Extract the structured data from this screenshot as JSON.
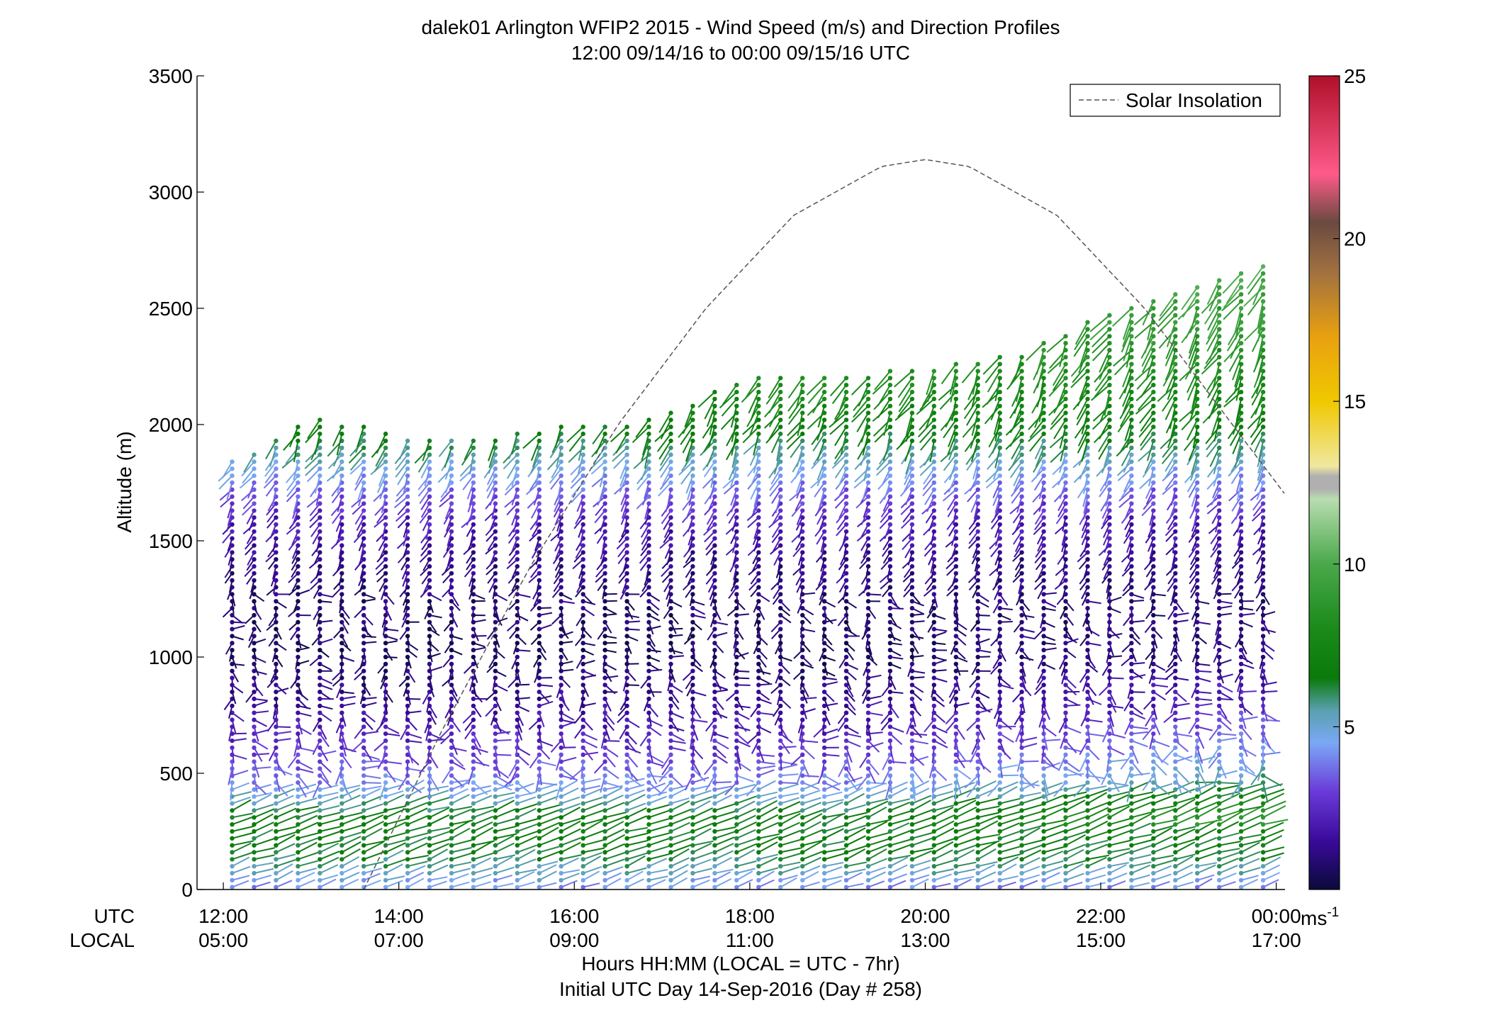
{
  "chart_data": {
    "type": "scatter",
    "title": "dalek01 Arlington WFIP2 2015 - Wind Speed (m/s) and Direction Profiles",
    "subtitle": "12:00 09/14/16 to 00:00 09/15/16  UTC",
    "ylabel": "Altitude (m)",
    "xlabel": "Hours HH:MM  (LOCAL = UTC - 7hr)",
    "xlabel2": "Initial UTC Day 14-Sep-2016 (Day # 258)",
    "row_label_utc": "UTC",
    "row_label_local": "LOCAL",
    "xlim_hours": [
      11.7,
      24.1
    ],
    "ylim": [
      0,
      3500
    ],
    "yticks": [
      0,
      500,
      1000,
      1500,
      2000,
      2500,
      3000,
      3500
    ],
    "xticks_utc": [
      "12:00",
      "14:00",
      "16:00",
      "18:00",
      "20:00",
      "22:00",
      "00:00"
    ],
    "xticks_local": [
      "05:00",
      "07:00",
      "09:00",
      "11:00",
      "13:00",
      "15:00",
      "17:00"
    ],
    "xtick_hours": [
      12,
      14,
      16,
      18,
      20,
      22,
      24
    ],
    "legend": {
      "label": "Solar Insolation",
      "style": "dashed",
      "placement": "top-right"
    },
    "colorbar": {
      "unit": "ms",
      "unit_exp": "-1",
      "ticks": [
        "5",
        "10",
        "15",
        "20",
        "25"
      ],
      "tick_values": [
        5,
        10,
        15,
        20,
        25
      ],
      "range": [
        0,
        25
      ],
      "stops": [
        {
          "v": 0,
          "c": "#0a0a3a"
        },
        {
          "v": 1.5,
          "c": "#3a0a9a"
        },
        {
          "v": 3,
          "c": "#6a3ad8"
        },
        {
          "v": 4.5,
          "c": "#7aa8f5"
        },
        {
          "v": 5.5,
          "c": "#5aa0b0"
        },
        {
          "v": 6.5,
          "c": "#0a7a0a"
        },
        {
          "v": 8,
          "c": "#1a8a1a"
        },
        {
          "v": 10,
          "c": "#4aa84a"
        },
        {
          "v": 12,
          "c": "#b8ddb0"
        },
        {
          "v": 12.3,
          "c": "#b0b0b0"
        },
        {
          "v": 12.7,
          "c": "#b0b0b0"
        },
        {
          "v": 13,
          "c": "#f0e8a0"
        },
        {
          "v": 15,
          "c": "#f0c800"
        },
        {
          "v": 17,
          "c": "#e8a010"
        },
        {
          "v": 19,
          "c": "#a07040"
        },
        {
          "v": 20.5,
          "c": "#6a4a40"
        },
        {
          "v": 22,
          "c": "#ff5a8a"
        },
        {
          "v": 25,
          "c": "#b0102a"
        }
      ]
    },
    "solar_insolation_curve": {
      "hours": [
        13.6,
        14.5,
        15.5,
        16.5,
        17.5,
        18.5,
        19.5,
        20.0,
        20.5,
        21.5,
        22.5,
        23.5,
        24.5
      ],
      "values": [
        0,
        690,
        1390,
        2000,
        2500,
        2900,
        3110,
        3140,
        3110,
        2900,
        2500,
        2000,
        1500
      ]
    },
    "wind_profile_grid": {
      "hour_start": 12.1,
      "hour_end": 23.9,
      "hour_step": 0.25,
      "altitude_start": 10,
      "altitude_step": 30,
      "max_altitude_by_hour": {
        "hours": [
          12.1,
          13.0,
          14.0,
          15.0,
          16.0,
          16.5,
          17.0,
          18.0,
          19.0,
          20.0,
          21.0,
          22.0,
          23.0,
          23.9
        ],
        "values": [
          1840,
          2050,
          1950,
          1950,
          2000,
          2000,
          2050,
          2220,
          2200,
          2250,
          2300,
          2480,
          2600,
          2700
        ]
      },
      "speed_profile_m_s": {
        "altitudes": [
          0,
          150,
          300,
          450,
          600,
          800,
          1000,
          1200,
          1400,
          1600,
          1800,
          2000,
          2300,
          2700
        ],
        "values": [
          4.0,
          6.5,
          6.8,
          4.2,
          2.8,
          1.5,
          0.6,
          0.8,
          1.2,
          2.2,
          4.5,
          7.0,
          8.5,
          10.0
        ]
      }
    }
  }
}
